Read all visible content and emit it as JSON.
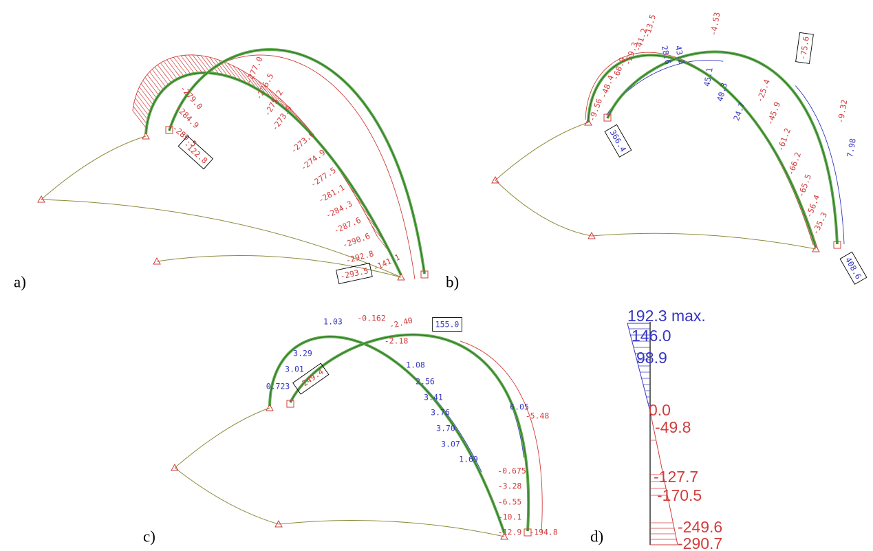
{
  "panels": [
    {
      "label": "a)",
      "values": [
        "-279.0",
        "-284.9",
        "-289.5",
        "-122.8",
        "-277.0",
        "-276.5",
        "-275.2",
        "-273.9",
        "-273.6",
        "-274.9",
        "-277.5",
        "-281.1",
        "-284.3",
        "-287.6",
        "-290.6",
        "-292.8",
        "-293.5",
        "-141.1"
      ]
    },
    {
      "label": "b)",
      "values": [
        "-9.56",
        "-48.4",
        "-60.9",
        "-59.3",
        "-41.2",
        "-13.5",
        "28.6",
        "43.2",
        "-4.53",
        "45.1",
        "40.3",
        "24.7",
        "-75.6",
        "366.4",
        "-25.4",
        "-45.9",
        "-61.2",
        "-66.2",
        "-65.5",
        "-56.4",
        "-35.3",
        "-9.32",
        "7.98",
        "408.6"
      ]
    },
    {
      "label": "c)",
      "values": [
        "3.29",
        "1.03",
        "-0.162",
        "-2.40",
        "155.0",
        "-2.18",
        "3.01",
        "0.723",
        "-249.4",
        "1.08",
        "2.56",
        "3.41",
        "3.76",
        "3.70",
        "3.07",
        "1.69",
        "6.05",
        "-5.48",
        "-0.675",
        "-3.28",
        "-6.55",
        "-10.1",
        "-12.9",
        "-194.8"
      ]
    },
    {
      "label": "d)",
      "values": [
        "192.3 max.",
        "146.0",
        "98.9",
        "0.0",
        "-49.8",
        "-127.7",
        "-170.5",
        "-249.6",
        "-290.7"
      ]
    }
  ]
}
